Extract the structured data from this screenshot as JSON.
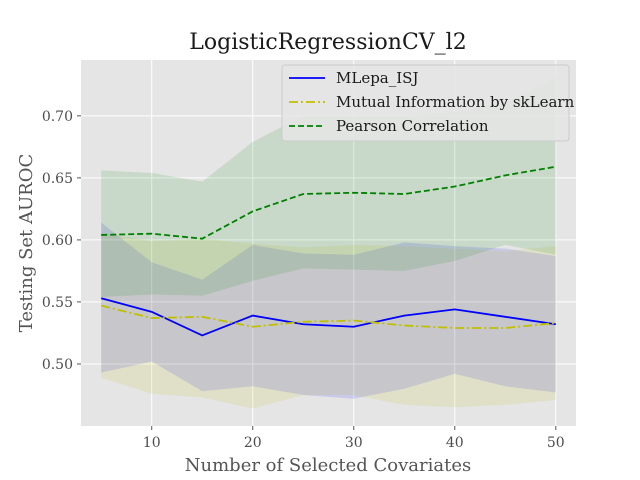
{
  "chart_data": {
    "type": "line",
    "title": "LogisticRegressionCV_l2",
    "xlabel": "Number of Selected Covariates",
    "ylabel": "Testing Set AUROC",
    "xlim": [
      3,
      52
    ],
    "ylim": [
      0.45,
      0.745
    ],
    "xticks": [
      10,
      20,
      30,
      40,
      50
    ],
    "yticks": [
      0.5,
      0.55,
      0.6,
      0.65,
      0.7
    ],
    "grid": true,
    "legend_position": "top-right",
    "x": [
      5,
      10,
      15,
      20,
      25,
      30,
      35,
      40,
      45,
      50
    ],
    "series": [
      {
        "name": "MLepa_ISJ",
        "color": "#0000ff",
        "linestyle": "solid",
        "values": [
          0.553,
          0.542,
          0.523,
          0.539,
          0.532,
          0.53,
          0.539,
          0.544,
          0.538,
          0.532
        ],
        "lower": [
          0.493,
          0.502,
          0.478,
          0.482,
          0.475,
          0.472,
          0.48,
          0.492,
          0.482,
          0.477
        ],
        "upper": [
          0.614,
          0.582,
          0.568,
          0.596,
          0.589,
          0.588,
          0.598,
          0.595,
          0.593,
          0.587
        ]
      },
      {
        "name": "Mutual Information by skLearn",
        "color": "#bfbf00",
        "linestyle": "dashdot",
        "values": [
          0.547,
          0.537,
          0.538,
          0.53,
          0.534,
          0.535,
          0.531,
          0.529,
          0.529,
          0.533
        ],
        "lower": [
          0.489,
          0.476,
          0.473,
          0.464,
          0.475,
          0.475,
          0.467,
          0.465,
          0.467,
          0.471
        ],
        "upper": [
          0.606,
          0.599,
          0.601,
          0.597,
          0.594,
          0.596,
          0.595,
          0.593,
          0.591,
          0.595
        ]
      },
      {
        "name": "Pearson Correlation",
        "color": "#008000",
        "linestyle": "dashed",
        "values": [
          0.604,
          0.605,
          0.601,
          0.623,
          0.637,
          0.638,
          0.637,
          0.643,
          0.652,
          0.659
        ],
        "lower": [
          0.554,
          0.556,
          0.555,
          0.567,
          0.577,
          0.576,
          0.575,
          0.583,
          0.596,
          0.588
        ],
        "upper": [
          0.656,
          0.654,
          0.647,
          0.679,
          0.7,
          0.7,
          0.7,
          0.703,
          0.71,
          0.731
        ]
      }
    ]
  }
}
